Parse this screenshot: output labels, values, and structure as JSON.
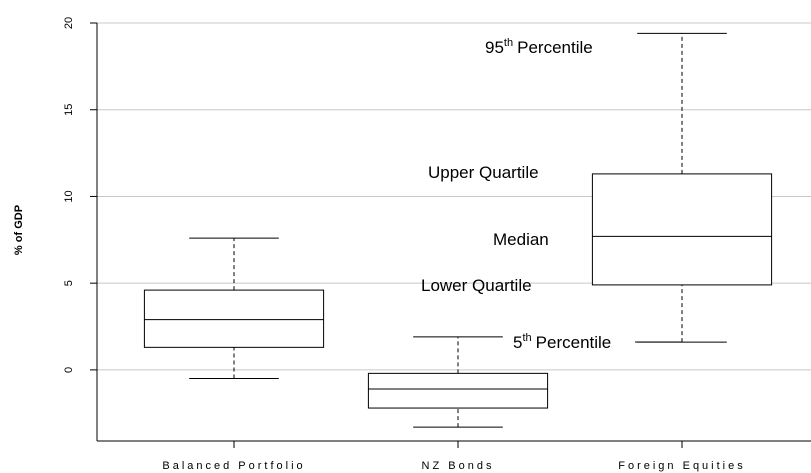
{
  "chart_data": {
    "type": "box",
    "y_label": "% of GDP",
    "categories": [
      "Balanced Portfolio",
      "NZ Bonds",
      "Foreign Equities"
    ],
    "whisker_low": [
      -0.5,
      -3.3,
      1.6
    ],
    "q1": [
      1.3,
      -2.2,
      4.9
    ],
    "median": [
      2.9,
      -1.1,
      7.7
    ],
    "q3": [
      4.6,
      -0.2,
      11.3
    ],
    "whisker_high": [
      7.6,
      1.9,
      19.4
    ],
    "ylim": [
      -4.1,
      20.75
    ],
    "yticks": [
      0,
      5,
      10,
      15,
      20
    ],
    "grid": true,
    "annotations": {
      "p95": {
        "number": "95",
        "suffix": "th",
        "text": "Percentile"
      },
      "upper": "Upper Quartile",
      "median": "Median",
      "lower": "Lower Quartile",
      "p5": {
        "number": "5",
        "suffix": "th",
        "text": "Percentile"
      }
    }
  }
}
